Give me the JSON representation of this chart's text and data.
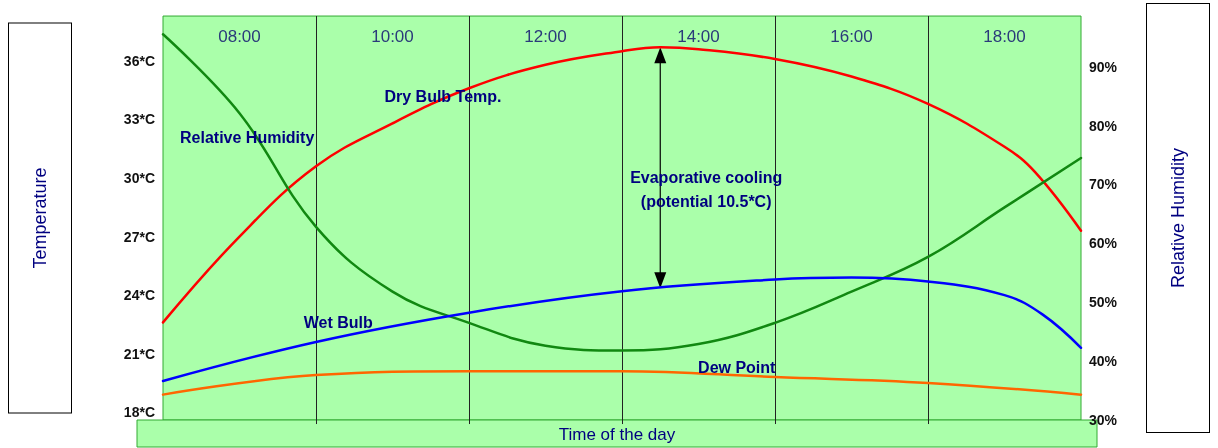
{
  "chart_data": {
    "type": "line",
    "xlabel": "Time of the day",
    "ylabel": "Temperature",
    "y2label": "Relative Humidity",
    "xlim": [
      7,
      19
    ],
    "xticks": [
      {
        "value": 8,
        "label": "08:00"
      },
      {
        "value": 9,
        "label": null
      },
      {
        "value": 10,
        "label": "10:00"
      },
      {
        "value": 11,
        "label": null
      },
      {
        "value": 12,
        "label": "12:00"
      },
      {
        "value": 13,
        "label": null
      },
      {
        "value": 14,
        "label": "14:00"
      },
      {
        "value": 15,
        "label": null
      },
      {
        "value": 16,
        "label": "16:00"
      },
      {
        "value": 17,
        "label": null
      },
      {
        "value": 18,
        "label": "18:00"
      }
    ],
    "ylim": [
      17.6,
      38.3
    ],
    "yticks": [
      {
        "value": 18,
        "label": "18*C"
      },
      {
        "value": 21,
        "label": "21*C"
      },
      {
        "value": 24,
        "label": "24*C"
      },
      {
        "value": 27,
        "label": "27*C"
      },
      {
        "value": 30,
        "label": "30*C"
      },
      {
        "value": 33,
        "label": "33*C"
      },
      {
        "value": 36,
        "label": "36*C"
      }
    ],
    "y2lim": [
      30,
      98.6
    ],
    "y2ticks": [
      {
        "value": 30,
        "label": "30%"
      },
      {
        "value": 40,
        "label": "40%"
      },
      {
        "value": 50,
        "label": "50%"
      },
      {
        "value": 60,
        "label": "60%"
      },
      {
        "value": 70,
        "label": "70%"
      },
      {
        "value": 80,
        "label": "80%"
      },
      {
        "value": 90,
        "label": "90%"
      }
    ],
    "grid": "x",
    "legend": false,
    "series": [
      {
        "name": "Dry Bulb Temp.",
        "color": "#ff0000",
        "x": [
          7,
          8,
          9,
          10,
          11,
          12,
          13,
          13.5,
          14,
          15,
          16,
          17,
          18,
          18.4,
          19
        ],
        "values": [
          22.6,
          27.0,
          30.6,
          32.8,
          34.6,
          35.8,
          36.5,
          36.7,
          36.6,
          36.1,
          35.2,
          33.8,
          31.6,
          30.3,
          27.3
        ]
      },
      {
        "name": "Relative Humidity",
        "color": "#118811",
        "axis": "y2",
        "x": [
          7,
          8,
          9,
          10,
          11,
          12,
          13,
          14,
          15,
          16,
          17,
          18,
          19
        ],
        "values": [
          95.5,
          82.1,
          62.8,
          51.8,
          46.5,
          42.6,
          41.8,
          42.9,
          46.5,
          51.8,
          57.7,
          66.1,
          74.5
        ]
      },
      {
        "name": "Wet Bulb",
        "color": "#0000ff",
        "x": [
          7,
          9,
          11,
          13,
          15,
          16,
          17,
          18,
          18.5,
          19
        ],
        "values": [
          19.6,
          21.6,
          23.1,
          24.2,
          24.8,
          24.9,
          24.7,
          24.0,
          23.0,
          21.3
        ]
      },
      {
        "name": "Dew Point",
        "color": "#ff6600",
        "x": [
          7,
          9,
          11,
          13,
          15,
          17,
          19
        ],
        "values": [
          18.9,
          19.9,
          20.1,
          20.1,
          19.8,
          19.5,
          18.9
        ]
      }
    ],
    "annotations": [
      "Evaporative cooling\n(potential 10.5*C)"
    ]
  }
}
